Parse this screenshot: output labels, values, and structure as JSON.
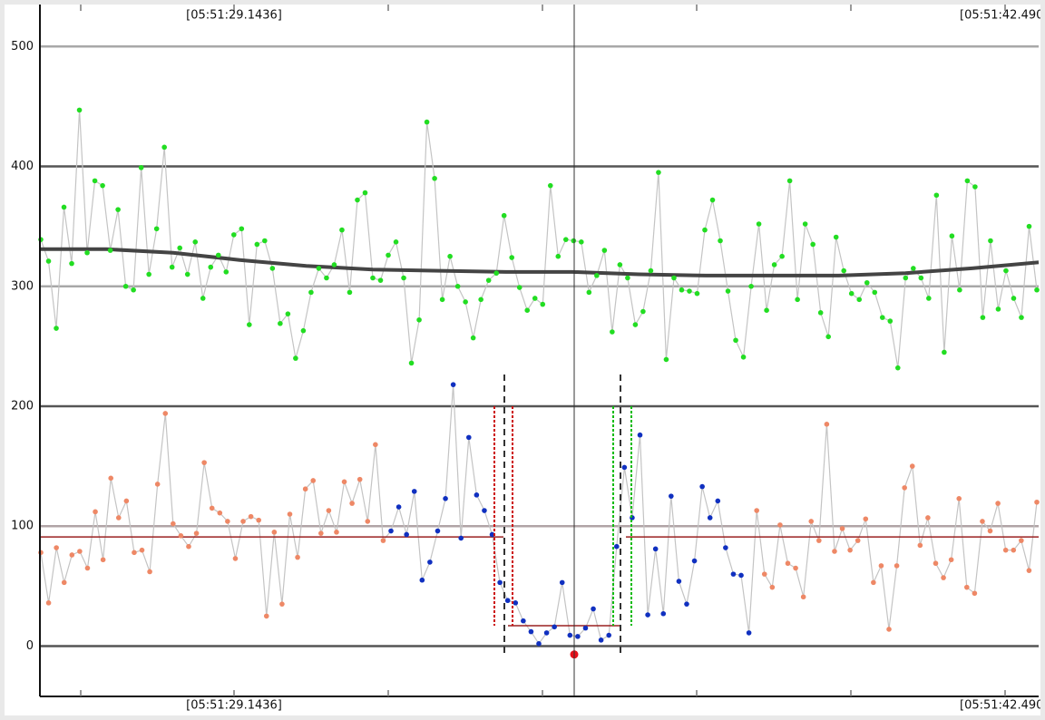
{
  "chart_data": {
    "type": "line",
    "x_labels": [
      "[05:51:29.1436]",
      "[05:51:42.490"
    ],
    "ylim": [
      -42,
      535
    ],
    "yticks": [
      0,
      100,
      200,
      300,
      400,
      500
    ],
    "grid": true,
    "grid_colors": [
      "#555555",
      "#b0a4a6",
      "#555555",
      "#a8a8a8",
      "#555555",
      "#a8a8a8"
    ],
    "series": [
      {
        "color": "#22dd22",
        "line_color": "#c4c4c4",
        "values": [
          339,
          321,
          265,
          366,
          319,
          447,
          328,
          388,
          384,
          330,
          364,
          300,
          297,
          399,
          310,
          348,
          416,
          316,
          332,
          310,
          337,
          290,
          316,
          326,
          312,
          343,
          348,
          268,
          335,
          338,
          315,
          269,
          277,
          240,
          263,
          295,
          315,
          307,
          318,
          347,
          295,
          372,
          378,
          307,
          305,
          326,
          337,
          307,
          236,
          272,
          437,
          390,
          289,
          325,
          300,
          287,
          257,
          289,
          305,
          311,
          359,
          324,
          299,
          280,
          290,
          285,
          384,
          325,
          339,
          338,
          337,
          295,
          309,
          330,
          262,
          318,
          307,
          268,
          279,
          313,
          395,
          239,
          307,
          297,
          296,
          294,
          347,
          372,
          338,
          296,
          255,
          241,
          300,
          352,
          280,
          318,
          325,
          388,
          289,
          352,
          335,
          278,
          258,
          341,
          313,
          294,
          289,
          303,
          295,
          274,
          271,
          232,
          307,
          315,
          307,
          290,
          376,
          245,
          342,
          297,
          388,
          383,
          274,
          338,
          281,
          313,
          290,
          274,
          350,
          297
        ]
      },
      {
        "color": "#ee8866",
        "line_color": "#c4c4c4",
        "highlight": {
          "from": 45,
          "to": 91,
          "color": "#1030c0"
        },
        "values": [
          78,
          36,
          82,
          53,
          76,
          79,
          65,
          112,
          72,
          140,
          107,
          121,
          78,
          80,
          62,
          135,
          194,
          102,
          92,
          83,
          94,
          153,
          115,
          111,
          104,
          73,
          104,
          108,
          105,
          25,
          95,
          35,
          110,
          74,
          131,
          138,
          94,
          113,
          95,
          137,
          119,
          139,
          104,
          168,
          88,
          96,
          116,
          93,
          129,
          55,
          70,
          96,
          123,
          218,
          90,
          174,
          126,
          113,
          93,
          53,
          38,
          36,
          21,
          12,
          2,
          11,
          16,
          53,
          9,
          8,
          15,
          31,
          5,
          9,
          83,
          149,
          107,
          176,
          26,
          81,
          27,
          125,
          54,
          35,
          71,
          133,
          107,
          121,
          82,
          60,
          59,
          11,
          113,
          60,
          49,
          101,
          69,
          65,
          41,
          104,
          88,
          185,
          79,
          98,
          80,
          88,
          106,
          53,
          67,
          14,
          67,
          132,
          150,
          84,
          107,
          69,
          57,
          72,
          123,
          49,
          44,
          104,
          96,
          119,
          80,
          80,
          88,
          63,
          120
        ]
      }
    ],
    "trend": {
      "color": "#444444",
      "values": [
        331,
        331,
        328,
        322,
        317,
        314,
        313,
        312,
        312,
        310,
        309,
        309,
        309,
        311,
        315,
        320
      ]
    },
    "levels": [
      {
        "value": 91,
        "color": "#9a2020"
      },
      {
        "value": 17,
        "color": "#9a2020"
      }
    ],
    "marker": {
      "value": -7,
      "color": "#e8101a"
    }
  }
}
